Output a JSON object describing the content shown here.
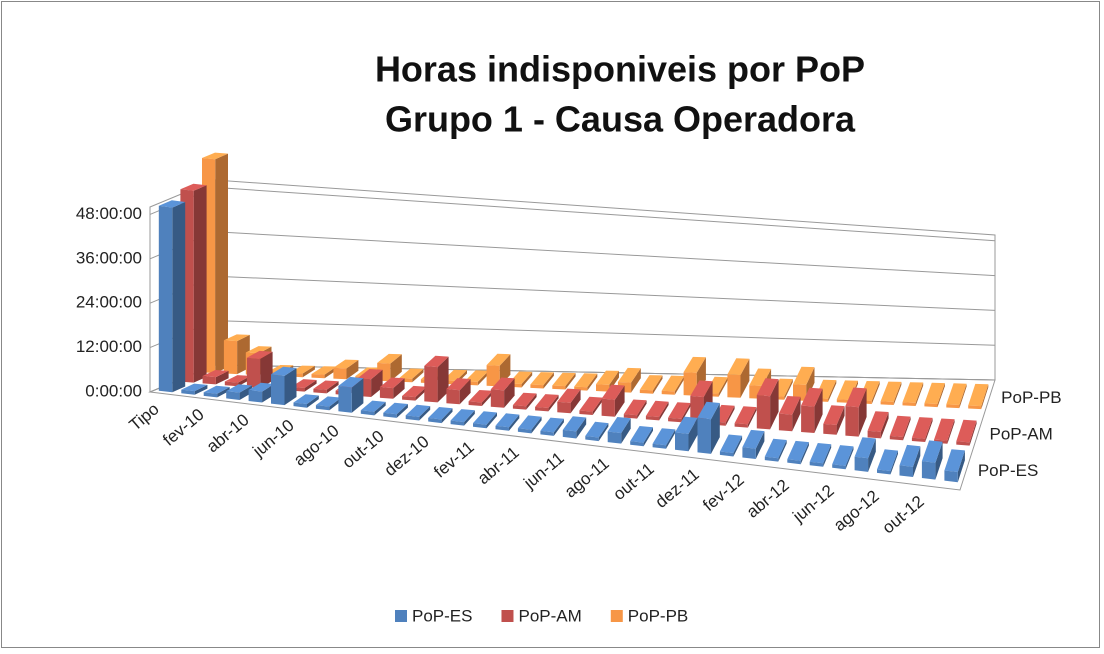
{
  "chart_data": {
    "type": "bar3d",
    "title": "Horas indisponiveis por PoP",
    "subtitle": "Grupo 1 - Causa Operadora",
    "categories": [
      "Tipo",
      null,
      "fev-10",
      null,
      "abr-10",
      null,
      "jun-10",
      null,
      "ago-10",
      null,
      "out-10",
      null,
      "dez-10",
      null,
      "fev-11",
      null,
      "abr-11",
      null,
      "jun-11",
      null,
      "ago-11",
      null,
      "out-11",
      null,
      "dez-11",
      null,
      "fev-12",
      null,
      "abr-12",
      null,
      "jun-12",
      null,
      "ago-12",
      null,
      "out-12",
      null
    ],
    "series": [
      {
        "name": "PoP-ES",
        "color": "#4f81bd",
        "values": [
          50,
          1,
          1,
          2,
          3,
          8,
          1,
          1,
          7,
          1,
          1,
          1,
          1,
          1,
          1,
          1,
          1,
          1,
          2,
          1,
          3,
          1,
          1,
          5,
          10,
          1,
          3,
          1,
          1,
          1,
          1,
          4,
          1,
          3,
          5,
          3
        ]
      },
      {
        "name": "PoP-AM",
        "color": "#c0504d",
        "values": [
          52,
          2,
          1,
          8,
          1,
          1,
          1,
          1,
          5,
          3,
          1,
          10,
          4,
          1,
          5,
          1,
          1,
          3,
          1,
          5,
          1,
          1,
          1,
          8,
          1,
          1,
          10,
          5,
          8,
          3,
          9,
          2,
          1,
          1,
          1,
          1
        ]
      },
      {
        "name": "PoP-PB",
        "color": "#f79646",
        "values": [
          58,
          9,
          6,
          1,
          1,
          1,
          3,
          1,
          5,
          1,
          1,
          1,
          1,
          6,
          1,
          1,
          1,
          1,
          2,
          3,
          1,
          1,
          7,
          1,
          7,
          4,
          1,
          5,
          1,
          1,
          1,
          1,
          1,
          1,
          1,
          1
        ]
      }
    ],
    "ylim": [
      0,
      50
    ],
    "yticks": [
      {
        "value": 0,
        "label": "0:00:00"
      },
      {
        "value": 12,
        "label": "12:00:00"
      },
      {
        "value": 24,
        "label": "24:00:00"
      },
      {
        "value": 36,
        "label": "36:00:00"
      },
      {
        "value": 48,
        "label": "48:00:00"
      }
    ],
    "grid": true
  }
}
